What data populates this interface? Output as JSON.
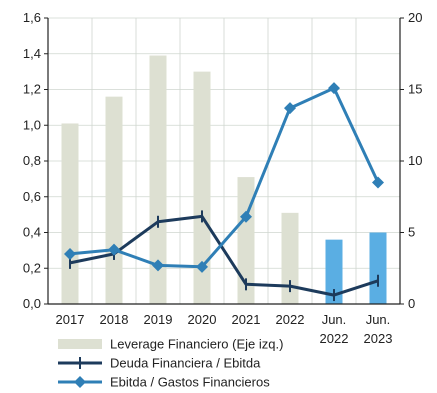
{
  "chart_data": {
    "type": "bar",
    "categories": [
      [
        "2017"
      ],
      [
        "2018"
      ],
      [
        "2019"
      ],
      [
        "2020"
      ],
      [
        "2021"
      ],
      [
        "2022"
      ],
      [
        "Jun.",
        "2022"
      ],
      [
        "Jun.",
        "2023"
      ]
    ],
    "y_left": {
      "range": [
        0,
        1.6
      ],
      "ticks": [
        "0,0",
        "0,2",
        "0,4",
        "0,6",
        "0,8",
        "1,0",
        "1,2",
        "1,4",
        "1,6"
      ]
    },
    "y_right": {
      "range": [
        0,
        20
      ],
      "ticks": [
        "0",
        "5",
        "10",
        "15",
        "20"
      ]
    },
    "grid": true,
    "legend_position": "bottom-center",
    "series": [
      {
        "name": "Leverage Financiero (Eje izq.)",
        "kind": "bar",
        "axis": "left",
        "values": [
          1.01,
          1.16,
          1.39,
          1.3,
          0.71,
          0.51,
          0.36,
          0.4
        ],
        "colors": [
          "#dde0d2",
          "#dde0d2",
          "#dde0d2",
          "#dde0d2",
          "#dde0d2",
          "#dde0d2",
          "#5aaee3",
          "#5aaee3"
        ]
      },
      {
        "name": "Deuda Financiera / Ebitda",
        "kind": "line",
        "marker": "cross",
        "axis": "left",
        "color": "#1d3b5c",
        "values": [
          0.23,
          0.28,
          0.46,
          0.49,
          0.11,
          0.1,
          0.05,
          0.13
        ]
      },
      {
        "name": "Ebitda / Gastos Financieros",
        "kind": "line",
        "marker": "diamond",
        "axis": "right",
        "color": "#2f7fb6",
        "values": [
          3.5,
          3.8,
          2.7,
          2.6,
          6.1,
          13.7,
          15.1,
          8.5
        ]
      }
    ]
  }
}
